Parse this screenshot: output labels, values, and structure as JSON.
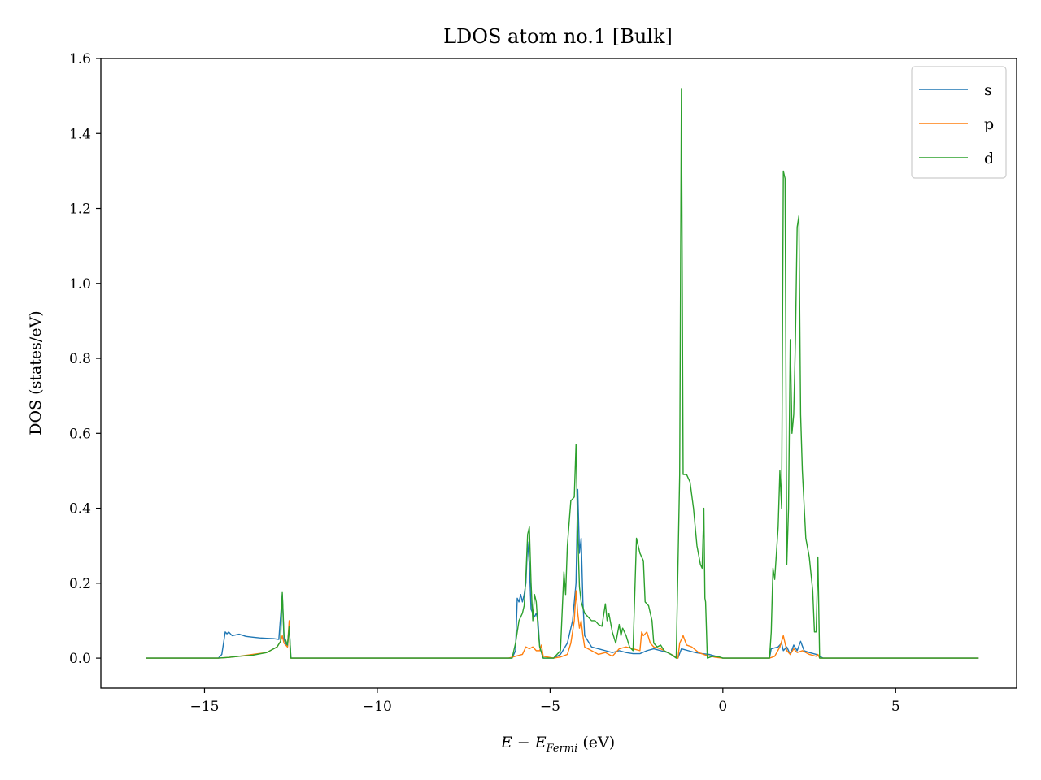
{
  "chart_data": {
    "type": "line",
    "title": "LDOS atom no.1 [Bulk]",
    "xlabel": "E − E_Fermi (eV)",
    "xlabel_main": "E − E",
    "xlabel_sub": "Fermi",
    "xlabel_unit": " (eV)",
    "ylabel": "DOS (states/eV)",
    "xlim": [
      -18.0,
      8.5
    ],
    "ylim": [
      -0.08,
      1.6
    ],
    "xticks": [
      -15,
      -10,
      -5,
      0,
      5
    ],
    "xtick_labels": [
      "−15",
      "−10",
      "−5",
      "0",
      "5"
    ],
    "yticks": [
      0.0,
      0.2,
      0.4,
      0.6,
      0.8,
      1.0,
      1.2,
      1.4,
      1.6
    ],
    "ytick_labels": [
      "0.0",
      "0.2",
      "0.4",
      "0.6",
      "0.8",
      "1.0",
      "1.2",
      "1.4",
      "1.6"
    ],
    "grid": false,
    "legend_position": "top-right",
    "series": [
      {
        "name": "s",
        "color": "#1f77b4",
        "points": [
          [
            -16.7,
            0.0
          ],
          [
            -14.6,
            0.0
          ],
          [
            -14.5,
            0.01
          ],
          [
            -14.4,
            0.07
          ],
          [
            -14.35,
            0.065
          ],
          [
            -14.3,
            0.07
          ],
          [
            -14.2,
            0.06
          ],
          [
            -14.0,
            0.064
          ],
          [
            -13.8,
            0.058
          ],
          [
            -13.6,
            0.056
          ],
          [
            -13.4,
            0.054
          ],
          [
            -13.2,
            0.053
          ],
          [
            -13.0,
            0.052
          ],
          [
            -12.85,
            0.05
          ],
          [
            -12.75,
            0.17
          ],
          [
            -12.7,
            0.05
          ],
          [
            -12.6,
            0.03
          ],
          [
            -12.55,
            0.085
          ],
          [
            -12.5,
            0.0
          ],
          [
            -6.1,
            0.0
          ],
          [
            -6.0,
            0.02
          ],
          [
            -5.95,
            0.16
          ],
          [
            -5.9,
            0.15
          ],
          [
            -5.85,
            0.17
          ],
          [
            -5.8,
            0.15
          ],
          [
            -5.75,
            0.17
          ],
          [
            -5.7,
            0.2
          ],
          [
            -5.65,
            0.31
          ],
          [
            -5.6,
            0.25
          ],
          [
            -5.55,
            0.13
          ],
          [
            -5.5,
            0.12
          ],
          [
            -5.45,
            0.11
          ],
          [
            -5.4,
            0.12
          ],
          [
            -5.35,
            0.1
          ],
          [
            -5.3,
            0.03
          ],
          [
            -5.2,
            0.0
          ],
          [
            -4.9,
            0.0
          ],
          [
            -4.7,
            0.01
          ],
          [
            -4.5,
            0.04
          ],
          [
            -4.35,
            0.1
          ],
          [
            -4.25,
            0.2
          ],
          [
            -4.2,
            0.45
          ],
          [
            -4.15,
            0.28
          ],
          [
            -4.1,
            0.32
          ],
          [
            -4.05,
            0.15
          ],
          [
            -4.0,
            0.06
          ],
          [
            -3.8,
            0.03
          ],
          [
            -3.6,
            0.025
          ],
          [
            -3.4,
            0.02
          ],
          [
            -3.2,
            0.015
          ],
          [
            -3.0,
            0.02
          ],
          [
            -2.8,
            0.015
          ],
          [
            -2.6,
            0.012
          ],
          [
            -2.4,
            0.012
          ],
          [
            -2.2,
            0.02
          ],
          [
            -2.0,
            0.025
          ],
          [
            -1.8,
            0.02
          ],
          [
            -1.6,
            0.015
          ],
          [
            -1.4,
            0.005
          ],
          [
            -1.3,
            0.0
          ],
          [
            -1.2,
            0.025
          ],
          [
            -1.0,
            0.02
          ],
          [
            -0.8,
            0.015
          ],
          [
            -0.6,
            0.012
          ],
          [
            -0.4,
            0.01
          ],
          [
            -0.2,
            0.005
          ],
          [
            0.0,
            0.0
          ],
          [
            1.35,
            0.0
          ],
          [
            1.4,
            0.025
          ],
          [
            1.6,
            0.03
          ],
          [
            1.7,
            0.04
          ],
          [
            1.75,
            0.02
          ],
          [
            1.85,
            0.03
          ],
          [
            1.95,
            0.01
          ],
          [
            2.05,
            0.035
          ],
          [
            2.15,
            0.02
          ],
          [
            2.25,
            0.045
          ],
          [
            2.35,
            0.02
          ],
          [
            2.5,
            0.015
          ],
          [
            2.7,
            0.01
          ],
          [
            2.8,
            0.005
          ],
          [
            2.9,
            0.0
          ],
          [
            7.4,
            0.0
          ]
        ]
      },
      {
        "name": "p",
        "color": "#ff7f0e",
        "points": [
          [
            -16.7,
            0.0
          ],
          [
            -14.6,
            0.0
          ],
          [
            -14.3,
            0.002
          ],
          [
            -14.0,
            0.005
          ],
          [
            -13.6,
            0.01
          ],
          [
            -13.2,
            0.015
          ],
          [
            -12.9,
            0.03
          ],
          [
            -12.8,
            0.045
          ],
          [
            -12.75,
            0.06
          ],
          [
            -12.7,
            0.04
          ],
          [
            -12.6,
            0.03
          ],
          [
            -12.55,
            0.1
          ],
          [
            -12.52,
            0.005
          ],
          [
            -12.5,
            0.0
          ],
          [
            -6.2,
            0.0
          ],
          [
            -6.0,
            0.005
          ],
          [
            -5.8,
            0.01
          ],
          [
            -5.7,
            0.03
          ],
          [
            -5.6,
            0.025
          ],
          [
            -5.5,
            0.03
          ],
          [
            -5.4,
            0.02
          ],
          [
            -5.3,
            0.02
          ],
          [
            -5.25,
            0.035
          ],
          [
            -5.2,
            0.005
          ],
          [
            -4.9,
            0.0
          ],
          [
            -4.7,
            0.003
          ],
          [
            -4.5,
            0.01
          ],
          [
            -4.4,
            0.04
          ],
          [
            -4.3,
            0.1
          ],
          [
            -4.25,
            0.18
          ],
          [
            -4.2,
            0.12
          ],
          [
            -4.15,
            0.08
          ],
          [
            -4.1,
            0.1
          ],
          [
            -4.05,
            0.06
          ],
          [
            -4.0,
            0.03
          ],
          [
            -3.8,
            0.02
          ],
          [
            -3.6,
            0.01
          ],
          [
            -3.4,
            0.015
          ],
          [
            -3.2,
            0.005
          ],
          [
            -3.0,
            0.025
          ],
          [
            -2.8,
            0.03
          ],
          [
            -2.6,
            0.025
          ],
          [
            -2.4,
            0.02
          ],
          [
            -2.35,
            0.07
          ],
          [
            -2.3,
            0.06
          ],
          [
            -2.2,
            0.07
          ],
          [
            -2.1,
            0.04
          ],
          [
            -2.0,
            0.03
          ],
          [
            -1.8,
            0.025
          ],
          [
            -1.6,
            0.015
          ],
          [
            -1.4,
            0.005
          ],
          [
            -1.3,
            0.0
          ],
          [
            -1.25,
            0.04
          ],
          [
            -1.15,
            0.06
          ],
          [
            -1.05,
            0.035
          ],
          [
            -0.9,
            0.03
          ],
          [
            -0.7,
            0.015
          ],
          [
            -0.5,
            0.008
          ],
          [
            -0.2,
            0.002
          ],
          [
            0.0,
            0.0
          ],
          [
            1.35,
            0.0
          ],
          [
            1.5,
            0.005
          ],
          [
            1.65,
            0.03
          ],
          [
            1.75,
            0.06
          ],
          [
            1.85,
            0.02
          ],
          [
            1.95,
            0.01
          ],
          [
            2.05,
            0.025
          ],
          [
            2.15,
            0.015
          ],
          [
            2.3,
            0.02
          ],
          [
            2.5,
            0.01
          ],
          [
            2.7,
            0.005
          ],
          [
            2.75,
            0.01
          ],
          [
            2.8,
            0.0
          ],
          [
            7.4,
            0.0
          ]
        ]
      },
      {
        "name": "d",
        "color": "#2ca02c",
        "points": [
          [
            -16.7,
            0.0
          ],
          [
            -14.6,
            0.0
          ],
          [
            -14.3,
            0.002
          ],
          [
            -14.0,
            0.005
          ],
          [
            -13.6,
            0.008
          ],
          [
            -13.2,
            0.015
          ],
          [
            -12.9,
            0.03
          ],
          [
            -12.8,
            0.045
          ],
          [
            -12.75,
            0.175
          ],
          [
            -12.7,
            0.06
          ],
          [
            -12.6,
            0.035
          ],
          [
            -12.55,
            0.085
          ],
          [
            -12.5,
            0.0
          ],
          [
            -6.1,
            0.0
          ],
          [
            -6.0,
            0.04
          ],
          [
            -5.9,
            0.1
          ],
          [
            -5.8,
            0.12
          ],
          [
            -5.75,
            0.14
          ],
          [
            -5.7,
            0.22
          ],
          [
            -5.65,
            0.33
          ],
          [
            -5.6,
            0.35
          ],
          [
            -5.55,
            0.2
          ],
          [
            -5.5,
            0.1
          ],
          [
            -5.45,
            0.17
          ],
          [
            -5.4,
            0.15
          ],
          [
            -5.35,
            0.08
          ],
          [
            -5.3,
            0.03
          ],
          [
            -5.2,
            0.0
          ],
          [
            -4.9,
            0.0
          ],
          [
            -4.7,
            0.02
          ],
          [
            -4.6,
            0.23
          ],
          [
            -4.55,
            0.17
          ],
          [
            -4.5,
            0.3
          ],
          [
            -4.4,
            0.42
          ],
          [
            -4.3,
            0.43
          ],
          [
            -4.25,
            0.57
          ],
          [
            -4.2,
            0.33
          ],
          [
            -4.15,
            0.19
          ],
          [
            -4.1,
            0.15
          ],
          [
            -4.0,
            0.12
          ],
          [
            -3.9,
            0.11
          ],
          [
            -3.8,
            0.1
          ],
          [
            -3.7,
            0.1
          ],
          [
            -3.6,
            0.09
          ],
          [
            -3.5,
            0.085
          ],
          [
            -3.4,
            0.145
          ],
          [
            -3.35,
            0.1
          ],
          [
            -3.3,
            0.12
          ],
          [
            -3.2,
            0.07
          ],
          [
            -3.1,
            0.04
          ],
          [
            -3.0,
            0.09
          ],
          [
            -2.95,
            0.06
          ],
          [
            -2.9,
            0.08
          ],
          [
            -2.8,
            0.06
          ],
          [
            -2.7,
            0.03
          ],
          [
            -2.6,
            0.02
          ],
          [
            -2.5,
            0.32
          ],
          [
            -2.4,
            0.28
          ],
          [
            -2.3,
            0.26
          ],
          [
            -2.25,
            0.15
          ],
          [
            -2.15,
            0.14
          ],
          [
            -2.05,
            0.1
          ],
          [
            -2.0,
            0.04
          ],
          [
            -1.9,
            0.03
          ],
          [
            -1.8,
            0.035
          ],
          [
            -1.7,
            0.02
          ],
          [
            -1.5,
            0.01
          ],
          [
            -1.35,
            0.0
          ],
          [
            -1.25,
            0.49
          ],
          [
            -1.2,
            1.52
          ],
          [
            -1.15,
            0.49
          ],
          [
            -1.05,
            0.49
          ],
          [
            -0.95,
            0.47
          ],
          [
            -0.85,
            0.4
          ],
          [
            -0.75,
            0.3
          ],
          [
            -0.65,
            0.25
          ],
          [
            -0.6,
            0.24
          ],
          [
            -0.55,
            0.4
          ],
          [
            -0.52,
            0.16
          ],
          [
            -0.5,
            0.15
          ],
          [
            -0.45,
            0.0
          ],
          [
            -0.3,
            0.005
          ],
          [
            -0.1,
            0.003
          ],
          [
            0.0,
            0.0
          ],
          [
            1.35,
            0.0
          ],
          [
            1.4,
            0.07
          ],
          [
            1.45,
            0.24
          ],
          [
            1.5,
            0.21
          ],
          [
            1.55,
            0.28
          ],
          [
            1.6,
            0.35
          ],
          [
            1.65,
            0.5
          ],
          [
            1.7,
            0.4
          ],
          [
            1.75,
            1.3
          ],
          [
            1.8,
            1.28
          ],
          [
            1.85,
            0.25
          ],
          [
            1.9,
            0.4
          ],
          [
            1.95,
            0.85
          ],
          [
            2.0,
            0.6
          ],
          [
            2.05,
            0.65
          ],
          [
            2.1,
            0.85
          ],
          [
            2.15,
            1.15
          ],
          [
            2.2,
            1.18
          ],
          [
            2.25,
            0.65
          ],
          [
            2.3,
            0.5
          ],
          [
            2.4,
            0.32
          ],
          [
            2.5,
            0.27
          ],
          [
            2.6,
            0.18
          ],
          [
            2.65,
            0.07
          ],
          [
            2.7,
            0.07
          ],
          [
            2.75,
            0.27
          ],
          [
            2.8,
            0.0
          ],
          [
            7.4,
            0.0
          ]
        ]
      }
    ]
  }
}
